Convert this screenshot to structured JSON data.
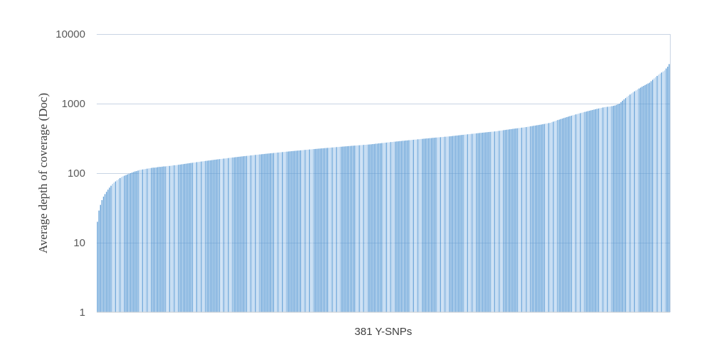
{
  "chart_data": {
    "type": "bar",
    "scale_y": "log10",
    "xlabel": "381 Y-SNPs",
    "ylabel": "Average depth of coverage (Doc)",
    "ylim": [
      1,
      10000
    ],
    "yticks": [
      "1",
      "10",
      "100",
      "1000",
      "10000"
    ],
    "grid": true,
    "sorted": "ascending",
    "n_bars": 381,
    "bar_color": "#5b9bd5",
    "values": [
      20,
      29,
      35,
      41,
      46,
      50,
      54,
      58,
      62,
      66,
      70,
      73,
      76,
      79,
      82,
      85,
      88,
      90,
      92,
      94,
      96,
      98,
      100,
      102,
      104,
      106,
      107,
      109,
      111,
      112,
      113,
      114,
      115,
      116,
      117,
      118,
      119,
      120,
      120,
      121,
      122,
      123,
      123,
      124,
      125,
      125,
      126,
      127,
      127,
      128,
      129,
      130,
      130,
      131,
      132,
      133,
      134,
      135,
      136,
      137,
      138,
      139,
      140,
      141,
      142,
      143,
      144,
      145,
      146,
      147,
      148,
      149,
      150,
      151,
      152,
      153,
      154,
      155,
      156,
      157,
      158,
      159,
      160,
      161,
      162,
      163,
      164,
      165,
      166,
      167,
      168,
      169,
      170,
      171,
      172,
      173,
      174,
      175,
      176,
      177,
      178,
      179,
      180,
      181,
      182,
      183,
      184,
      185,
      186,
      187,
      188,
      189,
      190,
      191,
      192,
      193,
      194,
      195,
      196,
      197,
      198,
      199,
      200,
      201,
      202,
      203,
      204,
      205,
      206,
      207,
      208,
      209,
      210,
      211,
      212,
      213,
      214,
      215,
      216,
      217,
      218,
      219,
      220,
      221,
      222,
      223,
      224,
      225,
      226,
      227,
      228,
      229,
      230,
      231,
      232,
      233,
      234,
      235,
      236,
      237,
      238,
      239,
      240,
      241,
      242,
      243,
      244,
      245,
      246,
      247,
      248,
      249,
      250,
      251,
      252,
      253,
      254,
      255,
      256,
      257,
      258,
      259,
      260,
      262,
      263,
      265,
      266,
      268,
      269,
      271,
      272,
      274,
      275,
      277,
      278,
      280,
      281,
      283,
      284,
      286,
      287,
      289,
      290,
      292,
      293,
      295,
      296,
      298,
      299,
      301,
      302,
      304,
      305,
      307,
      308,
      310,
      311,
      313,
      314,
      316,
      317,
      319,
      320,
      322,
      323,
      325,
      326,
      328,
      329,
      331,
      332,
      334,
      335,
      337,
      338,
      340,
      342,
      344,
      346,
      348,
      350,
      352,
      354,
      356,
      358,
      360,
      362,
      364,
      366,
      368,
      370,
      372,
      374,
      376,
      378,
      380,
      382,
      384,
      386,
      388,
      390,
      392,
      394,
      396,
      398,
      400,
      403,
      406,
      409,
      412,
      415,
      418,
      421,
      424,
      427,
      430,
      433,
      436,
      439,
      442,
      445,
      448,
      451,
      454,
      457,
      460,
      464,
      468,
      472,
      476,
      480,
      484,
      488,
      492,
      496,
      500,
      505,
      510,
      515,
      520,
      525,
      530,
      540,
      550,
      560,
      570,
      580,
      590,
      600,
      610,
      620,
      630,
      640,
      650,
      660,
      670,
      680,
      690,
      700,
      710,
      720,
      730,
      740,
      750,
      760,
      770,
      780,
      790,
      800,
      810,
      820,
      830,
      840,
      850,
      860,
      870,
      880,
      890,
      895,
      900,
      905,
      910,
      920,
      930,
      940,
      960,
      980,
      1000,
      1050,
      1100,
      1150,
      1200,
      1250,
      1300,
      1350,
      1400,
      1450,
      1500,
      1550,
      1600,
      1650,
      1700,
      1750,
      1800,
      1850,
      1900,
      1950,
      2000,
      2100,
      2200,
      2300,
      2400,
      2500,
      2600,
      2700,
      2800,
      2900,
      3000,
      3200,
      3400,
      3700
    ]
  }
}
